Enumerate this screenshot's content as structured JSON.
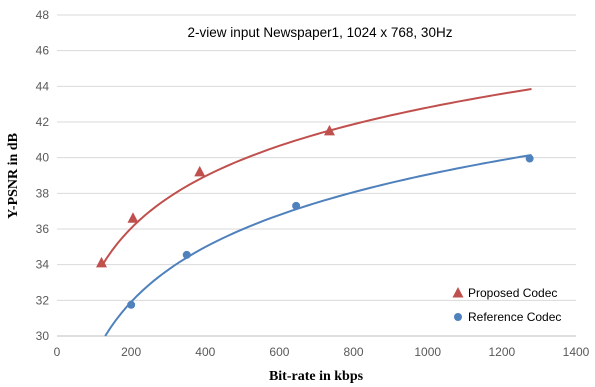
{
  "chart_data": {
    "type": "scatter",
    "title": "2-view input Newspaper1, 1024 x 768, 30Hz",
    "xlabel": "Bit-rate in kbps",
    "ylabel": "Y-PSNR  in dB",
    "xlim": [
      0,
      1400
    ],
    "ylim": [
      30,
      48
    ],
    "x_ticks": [
      0,
      200,
      400,
      600,
      800,
      1000,
      1200,
      1400
    ],
    "y_ticks": [
      30,
      32,
      34,
      36,
      38,
      40,
      42,
      44,
      46,
      48
    ],
    "grid": "horizontal",
    "legend_position": "bottom-right",
    "series": [
      {
        "name": "Proposed Codec",
        "color": "#c0504d",
        "marker": "triangle",
        "points": [
          {
            "x": 120,
            "y": 34.1
          },
          {
            "x": 205,
            "y": 36.6
          },
          {
            "x": 385,
            "y": 39.2
          },
          {
            "x": 735,
            "y": 41.5
          }
        ],
        "trendline": {
          "type": "log",
          "x_range": [
            120,
            1280
          ],
          "y_range": [
            33.9,
            43.85
          ]
        }
      },
      {
        "name": "Reference Codec",
        "color": "#4f81bd",
        "marker": "circle",
        "points": [
          {
            "x": 200,
            "y": 31.75
          },
          {
            "x": 350,
            "y": 34.55
          },
          {
            "x": 645,
            "y": 37.3
          },
          {
            "x": 1275,
            "y": 39.95
          }
        ],
        "trendline": {
          "type": "log",
          "x_range": [
            130,
            1280
          ],
          "y_range": [
            30.0,
            40.15
          ]
        }
      }
    ]
  }
}
